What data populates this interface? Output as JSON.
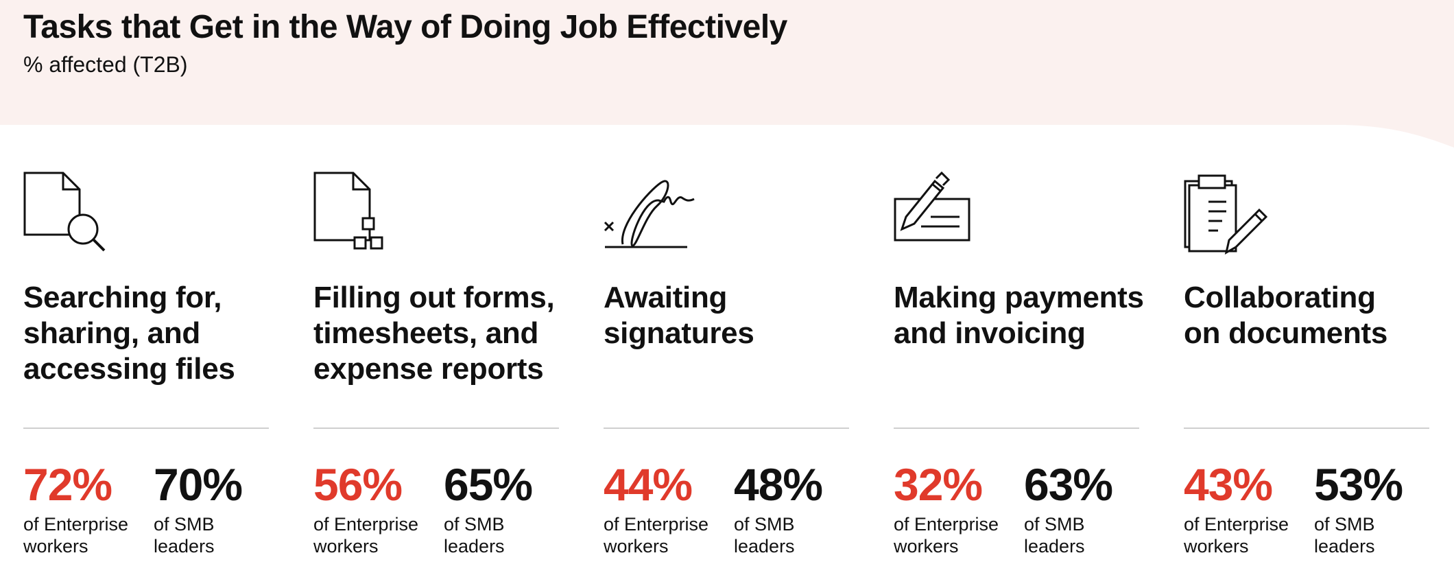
{
  "header": {
    "title": "Tasks that Get in the Way of Doing Job Effectively",
    "subtitle": "% affected (T2B)"
  },
  "colors": {
    "header_background": "#fbf1ef",
    "enterprise": "#e03a2b",
    "smb": "#111111",
    "divider": "#cfcfcf"
  },
  "chart_data": {
    "type": "table",
    "title": "Tasks that Get in the Way of Doing Job Effectively",
    "subtitle": "% affected (T2B)",
    "categories": [
      "Searching for, sharing, and accessing files",
      "Filling out forms, timesheets, and expense reports",
      "Awaiting signatures",
      "Making payments and invoicing",
      "Collaborating on documents"
    ],
    "series": [
      {
        "name": "of Enterprise workers",
        "values": [
          72,
          56,
          44,
          32,
          43
        ]
      },
      {
        "name": "of SMB leaders",
        "values": [
          70,
          65,
          48,
          63,
          53
        ]
      }
    ]
  },
  "tasks": [
    {
      "icon": "file-search-icon",
      "title_lines": [
        "Searching for,",
        "sharing, and",
        "accessing files"
      ],
      "enterprise_value": "72%",
      "enterprise_label_lines": [
        "of Enterprise",
        "workers"
      ],
      "smb_value": "70%",
      "smb_label_lines": [
        "of SMB",
        "leaders"
      ]
    },
    {
      "icon": "form-fields-icon",
      "title_lines": [
        "Filling out forms,",
        "timesheets, and",
        "expense reports"
      ],
      "enterprise_value": "56%",
      "enterprise_label_lines": [
        "of Enterprise",
        "workers"
      ],
      "smb_value": "65%",
      "smb_label_lines": [
        "of SMB",
        "leaders"
      ]
    },
    {
      "icon": "signature-icon",
      "title_lines": [
        "Awaiting",
        "signatures"
      ],
      "enterprise_value": "44%",
      "enterprise_label_lines": [
        "of Enterprise",
        "workers"
      ],
      "smb_value": "48%",
      "smb_label_lines": [
        "of SMB",
        "leaders"
      ]
    },
    {
      "icon": "payment-check-icon",
      "title_lines": [
        "Making payments",
        "and invoicing"
      ],
      "enterprise_value": "32%",
      "enterprise_label_lines": [
        "of Enterprise",
        "workers"
      ],
      "smb_value": "63%",
      "smb_label_lines": [
        "of SMB",
        "leaders"
      ]
    },
    {
      "icon": "clipboard-pencil-icon",
      "title_lines": [
        "Collaborating",
        "on documents"
      ],
      "enterprise_value": "43%",
      "enterprise_label_lines": [
        "of Enterprise",
        "workers"
      ],
      "smb_value": "53%",
      "smb_label_lines": [
        "of SMB",
        "leaders"
      ]
    }
  ]
}
